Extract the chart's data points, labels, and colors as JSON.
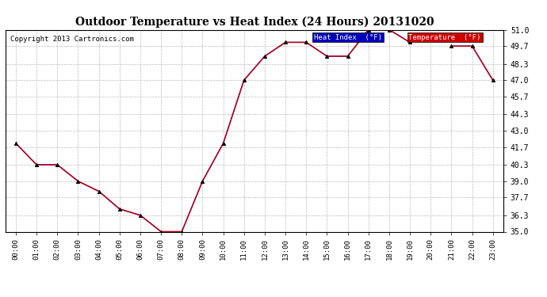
{
  "title": "Outdoor Temperature vs Heat Index (24 Hours) 20131020",
  "copyright": "Copyright 2013 Cartronics.com",
  "x_labels": [
    "00:00",
    "01:00",
    "02:00",
    "03:00",
    "04:00",
    "05:00",
    "06:00",
    "07:00",
    "08:00",
    "09:00",
    "10:00",
    "11:00",
    "12:00",
    "13:00",
    "14:00",
    "15:00",
    "16:00",
    "17:00",
    "18:00",
    "19:00",
    "20:00",
    "21:00",
    "22:00",
    "23:00"
  ],
  "temperature": [
    42.0,
    40.3,
    40.3,
    39.0,
    38.2,
    36.8,
    36.3,
    35.0,
    35.0,
    39.0,
    42.0,
    47.0,
    48.9,
    50.0,
    50.0,
    48.9,
    48.9,
    51.0,
    51.0,
    50.0,
    null,
    49.7,
    49.7,
    47.0
  ],
  "heat_index": [
    42.0,
    40.3,
    40.3,
    39.0,
    38.2,
    36.8,
    36.3,
    35.0,
    35.0,
    39.0,
    42.0,
    47.0,
    48.9,
    50.0,
    50.0,
    48.9,
    48.9,
    51.0,
    51.0,
    50.0,
    null,
    49.7,
    49.7,
    47.0
  ],
  "ylim": [
    35.0,
    51.0
  ],
  "yticks": [
    35.0,
    36.3,
    37.7,
    39.0,
    40.3,
    41.7,
    43.0,
    44.3,
    45.7,
    47.0,
    48.3,
    49.7,
    51.0
  ],
  "temp_color": "#cc0000",
  "heat_color": "#0000bb",
  "bg_color": "#ffffff",
  "plot_bg_color": "#ffffff",
  "grid_color": "#bbbbbb",
  "title_fontsize": 10,
  "legend_heat_bg": "#0000bb",
  "legend_temp_bg": "#cc0000"
}
